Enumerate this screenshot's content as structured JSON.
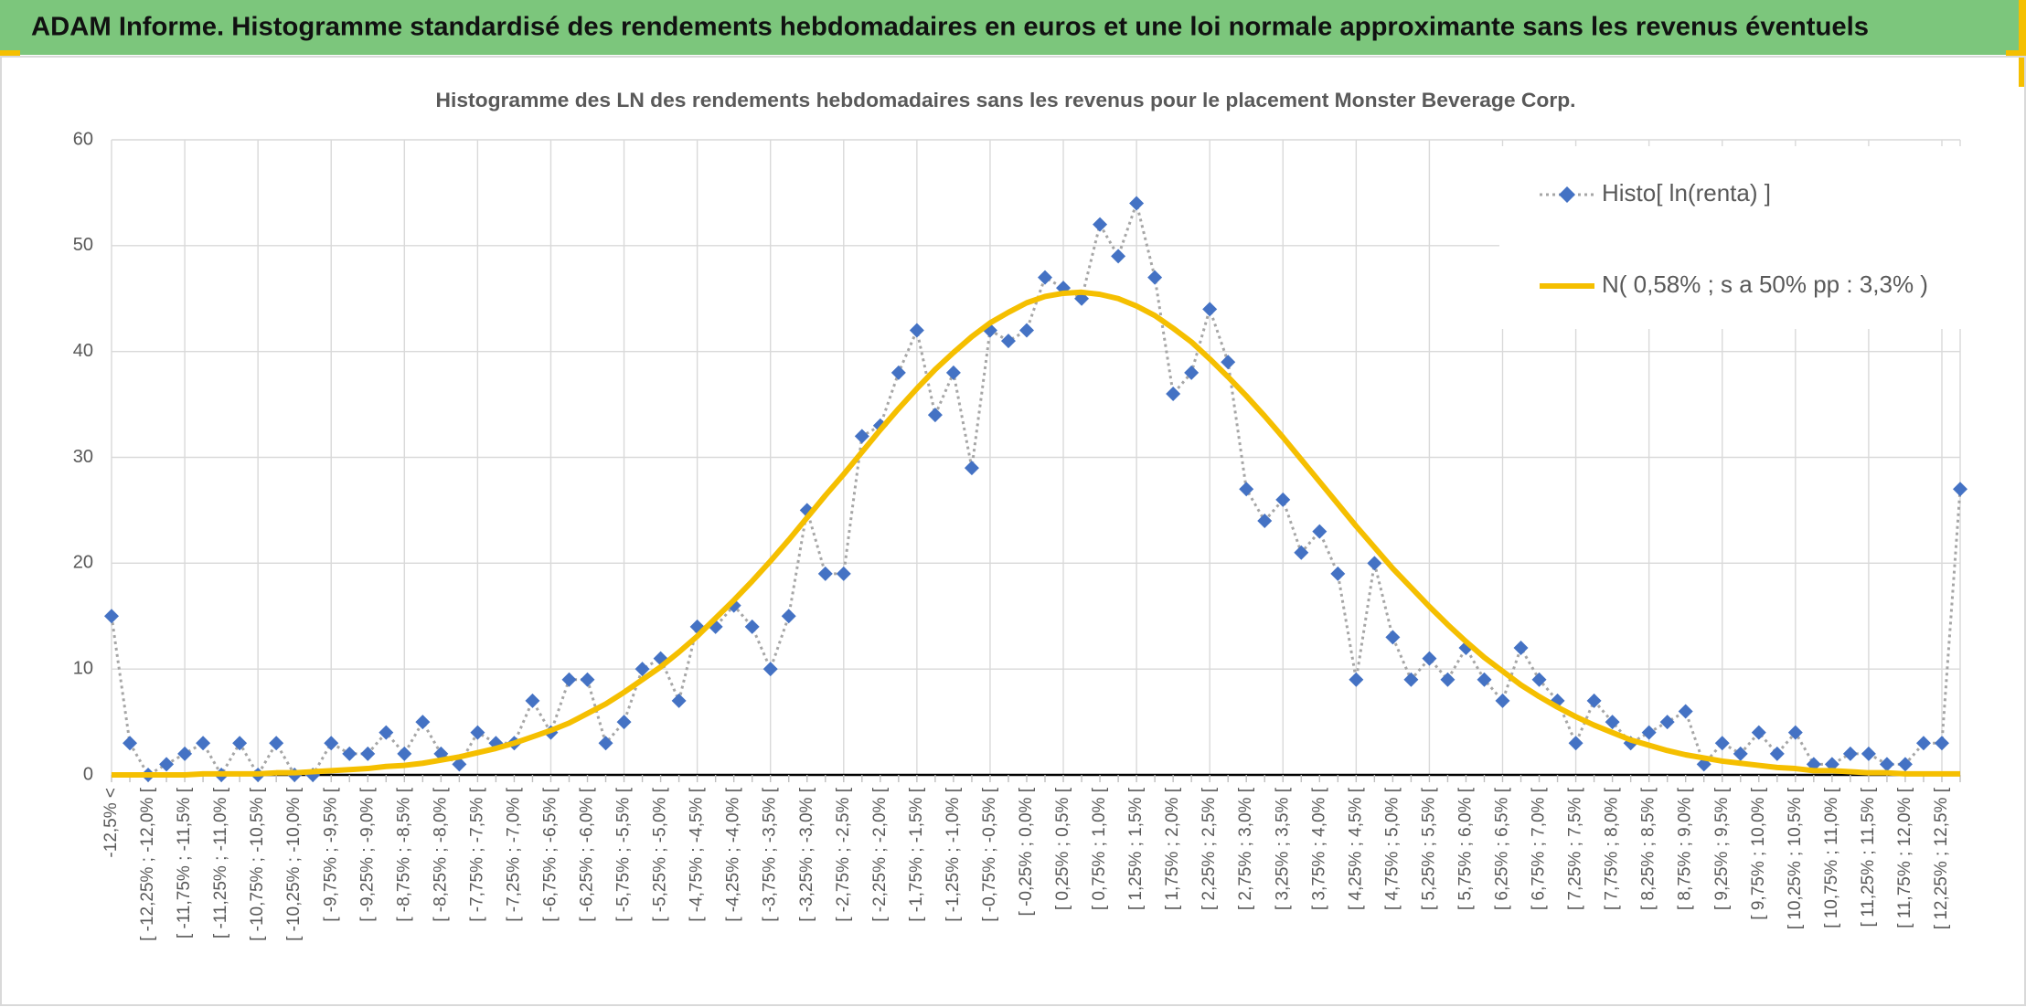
{
  "header": {
    "title": "ADAM Informe. Histogramme standardisé des rendements hebdomadaires en euros et une loi normale approximante sans les revenus éventuels"
  },
  "chart_data": {
    "type": "line",
    "title": "Histogramme des LN des rendements hebdomadaires sans les revenus pour le placement Monster Beverage Corp.",
    "categories": [
      "-12,5% <",
      null,
      "[ -12,25% ; -12,0% [",
      null,
      "[ -11,75% ; -11,5% [",
      null,
      "[ -11,25% ; -11,0% [",
      null,
      "[ -10,75% ; -10,5% [",
      null,
      "[ -10,25% ; -10,0% [",
      null,
      "[ -9,75% ; -9,5% [",
      null,
      "[ -9,25% ; -9,0% [",
      null,
      "[ -8,75% ; -8,5% [",
      null,
      "[ -8,25% ; -8,0% [",
      null,
      "[ -7,75% ; -7,5% [",
      null,
      "[ -7,25% ; -7,0% [",
      null,
      "[ -6,75% ; -6,5% [",
      null,
      "[ -6,25% ; -6,0% [",
      null,
      "[ -5,75% ; -5,5% [",
      null,
      "[ -5,25% ; -5,0% [",
      null,
      "[ -4,75% ; -4,5% [",
      null,
      "[ -4,25% ; -4,0% [",
      null,
      "[ -3,75% ; -3,5% [",
      null,
      "[ -3,25% ; -3,0% [",
      null,
      "[ -2,75% ; -2,5% [",
      null,
      "[ -2,25% ; -2,0% [",
      null,
      "[ -1,75% ; -1,5% [",
      null,
      "[ -1,25% ; -1,0% [",
      null,
      "[ -0,75% ; -0,5% [",
      null,
      "[ -0,25% ; 0,0% [",
      null,
      "[ 0,25% ; 0,5% [",
      null,
      "[ 0,75% ; 1,0% [",
      null,
      "[ 1,25% ; 1,5% [",
      null,
      "[ 1,75% ; 2,0% [",
      null,
      "[ 2,25% ; 2,5% [",
      null,
      "[ 2,75% ; 3,0% [",
      null,
      "[ 3,25% ; 3,5% [",
      null,
      "[ 3,75% ; 4,0% [",
      null,
      "[ 4,25% ; 4,5% [",
      null,
      "[ 4,75% ; 5,0% [",
      null,
      "[ 5,25% ; 5,5% [",
      null,
      "[ 5,75% ; 6,0% [",
      null,
      "[ 6,25% ; 6,5% [",
      null,
      "[ 6,75% ; 7,0% [",
      null,
      "[ 7,25% ; 7,5% [",
      null,
      "[ 7,75% ; 8,0% [",
      null,
      "[ 8,25% ; 8,5% [",
      null,
      "[ 8,75% ; 9,0% [",
      null,
      "[ 9,25% ; 9,5% [",
      null,
      "[ 9,75% ; 10,0% [",
      null,
      "[ 10,25% ; 10,5% [",
      null,
      "[ 10,75% ; 11,0% [",
      null,
      "[ 11,25% ; 11,5% [",
      null,
      "[ 11,75% ; 12,0% [",
      null,
      "[ 12,25% ; 12,5% [",
      null
    ],
    "series": [
      {
        "name": "Histo[ ln(renta) ]",
        "color": "#4472c4",
        "line_color": "#a6a6a6",
        "marker": "diamond",
        "dashed": true,
        "values": [
          15,
          3,
          0,
          1,
          2,
          3,
          0,
          3,
          0,
          3,
          0,
          0,
          3,
          2,
          2,
          4,
          2,
          5,
          2,
          1,
          4,
          3,
          3,
          7,
          4,
          9,
          9,
          3,
          5,
          10,
          11,
          7,
          14,
          14,
          16,
          14,
          10,
          15,
          25,
          19,
          19,
          32,
          33,
          38,
          42,
          34,
          38,
          29,
          42,
          41,
          42,
          47,
          46,
          45,
          52,
          49,
          54,
          47,
          36,
          38,
          44,
          39,
          27,
          24,
          26,
          21,
          23,
          19,
          9,
          20,
          13,
          9,
          11,
          9,
          12,
          9,
          7,
          12,
          9,
          7,
          3,
          7,
          5,
          3,
          4,
          5,
          6,
          1,
          3,
          2,
          4,
          2,
          4,
          1,
          1,
          2,
          2,
          1,
          1,
          3,
          3,
          27
        ]
      },
      {
        "name": "N( 0,58% ; s a 50% pp : 3,3% )",
        "color": "#f5bf00",
        "line_color": "#f5bf00",
        "marker": "none",
        "dashed": false,
        "values": [
          0.0,
          0.0,
          0.0,
          0.0,
          0.0,
          0.1,
          0.1,
          0.1,
          0.1,
          0.2,
          0.2,
          0.3,
          0.4,
          0.5,
          0.6,
          0.8,
          0.9,
          1.1,
          1.4,
          1.7,
          2.1,
          2.5,
          3.0,
          3.6,
          4.2,
          4.9,
          5.8,
          6.7,
          7.8,
          9.0,
          10.2,
          11.6,
          13.1,
          14.8,
          16.5,
          18.3,
          20.2,
          22.2,
          24.3,
          26.4,
          28.4,
          30.5,
          32.6,
          34.6,
          36.5,
          38.3,
          39.9,
          41.4,
          42.7,
          43.7,
          44.6,
          45.2,
          45.5,
          45.6,
          45.4,
          45.0,
          44.3,
          43.4,
          42.2,
          40.9,
          39.3,
          37.6,
          35.8,
          33.9,
          31.9,
          29.8,
          27.7,
          25.6,
          23.5,
          21.5,
          19.5,
          17.7,
          15.9,
          14.2,
          12.6,
          11.1,
          9.8,
          8.5,
          7.4,
          6.4,
          5.5,
          4.7,
          4.0,
          3.3,
          2.8,
          2.3,
          1.9,
          1.6,
          1.3,
          1.1,
          0.9,
          0.7,
          0.6,
          0.4,
          0.4,
          0.3,
          0.2,
          0.2,
          0.1,
          0.1,
          0.1,
          0.1
        ]
      }
    ],
    "ylim": [
      0,
      60
    ],
    "yticks": [
      0,
      10,
      20,
      30,
      40,
      50,
      60
    ],
    "grid": true,
    "legend": "upper right"
  }
}
